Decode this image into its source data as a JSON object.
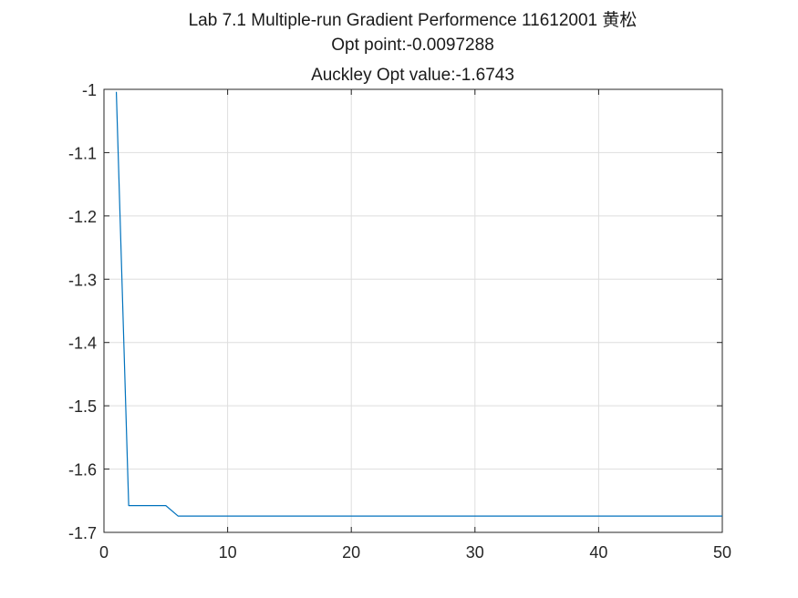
{
  "chart_data": {
    "type": "line",
    "title_lines": [
      "Lab 7.1 Multiple-run Gradient Performence 11612001 黄松",
      "Opt point:-0.0097288",
      "Auckley Opt value:-1.6743"
    ],
    "xlabel": "",
    "ylabel": "",
    "xlim": [
      0,
      50
    ],
    "ylim": [
      -1.7,
      -1
    ],
    "xticks": [
      0,
      10,
      20,
      30,
      40,
      50
    ],
    "xtick_labels": [
      "0",
      "10",
      "20",
      "30",
      "40",
      "50"
    ],
    "yticks": [
      -1,
      -1.1,
      -1.2,
      -1.3,
      -1.4,
      -1.5,
      -1.6,
      -1.7
    ],
    "ytick_labels": [
      "-1",
      "-1.1",
      "-1.2",
      "-1.3",
      "-1.4",
      "-1.5",
      "-1.6",
      "-1.7"
    ],
    "grid": true,
    "legend": "none",
    "series": [
      {
        "color": "#0072BD",
        "x": [
          1,
          2,
          3,
          4,
          5,
          6,
          7,
          8,
          9,
          10,
          11,
          12,
          13,
          14,
          15,
          16,
          17,
          18,
          19,
          20,
          21,
          22,
          23,
          24,
          25,
          26,
          27,
          28,
          29,
          30,
          31,
          32,
          33,
          34,
          35,
          36,
          37,
          38,
          39,
          40,
          41,
          42,
          43,
          44,
          45,
          46,
          47,
          48,
          49,
          50
        ],
        "y": [
          -1.004,
          -1.6577,
          -1.6577,
          -1.6577,
          -1.6577,
          -1.6743,
          -1.6743,
          -1.6743,
          -1.6743,
          -1.6743,
          -1.6743,
          -1.6743,
          -1.6743,
          -1.6743,
          -1.6743,
          -1.6743,
          -1.6743,
          -1.6743,
          -1.6743,
          -1.6743,
          -1.6743,
          -1.6743,
          -1.6743,
          -1.6743,
          -1.6743,
          -1.6743,
          -1.6743,
          -1.6743,
          -1.6743,
          -1.6743,
          -1.6743,
          -1.6743,
          -1.6743,
          -1.6743,
          -1.6743,
          -1.6743,
          -1.6743,
          -1.6743,
          -1.6743,
          -1.6743,
          -1.6743,
          -1.6743,
          -1.6743,
          -1.6743,
          -1.6743,
          -1.6743,
          -1.6743,
          -1.6743,
          -1.6743,
          -1.6743
        ]
      }
    ]
  }
}
